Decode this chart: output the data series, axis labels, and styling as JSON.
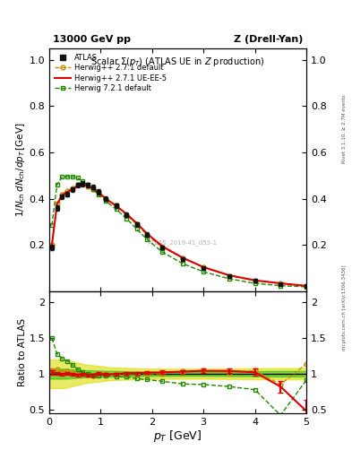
{
  "title_top": "13000 GeV pp",
  "title_right": "Z (Drell-Yan)",
  "plot_title": "Scalar Σ(p_T) (ATLAS UE in Z production)",
  "ylabel_main": "1/N_{ch} dN_{ch}/dp_T [GeV]",
  "ylabel_ratio": "Ratio to ATLAS",
  "xlabel": "p_T [GeV]",
  "side_text_right": "Rivet 3.1.10, ≥ 2.7M events",
  "side_text_left": "mcplots.cern.ch [arXiv:1306.3436]",
  "watermark": "ATLAS_2019-41_d53-1",
  "atlas_x": [
    0.05,
    0.15,
    0.25,
    0.35,
    0.45,
    0.55,
    0.65,
    0.75,
    0.85,
    0.95,
    1.1,
    1.3,
    1.5,
    1.7,
    1.9,
    2.2,
    2.6,
    3.0,
    3.5,
    4.0,
    4.5,
    5.0
  ],
  "atlas_y": [
    0.19,
    0.36,
    0.41,
    0.42,
    0.44,
    0.46,
    0.465,
    0.46,
    0.45,
    0.43,
    0.4,
    0.37,
    0.33,
    0.29,
    0.245,
    0.19,
    0.14,
    0.1,
    0.067,
    0.045,
    0.033,
    0.022
  ],
  "atlas_yerr": [
    0.01,
    0.01,
    0.01,
    0.01,
    0.01,
    0.01,
    0.01,
    0.01,
    0.01,
    0.01,
    0.01,
    0.01,
    0.01,
    0.01,
    0.01,
    0.008,
    0.006,
    0.004,
    0.003,
    0.002,
    0.002,
    0.001
  ],
  "hw271def_x": [
    0.05,
    0.15,
    0.25,
    0.35,
    0.45,
    0.55,
    0.65,
    0.75,
    0.85,
    0.95,
    1.1,
    1.3,
    1.5,
    1.7,
    1.9,
    2.2,
    2.6,
    3.0,
    3.5,
    4.0,
    4.5,
    5.0
  ],
  "hw271def_y": [
    0.2,
    0.38,
    0.42,
    0.435,
    0.445,
    0.46,
    0.465,
    0.455,
    0.44,
    0.43,
    0.4,
    0.37,
    0.33,
    0.29,
    0.245,
    0.19,
    0.145,
    0.105,
    0.068,
    0.047,
    0.036,
    0.025
  ],
  "hw271ue5_x": [
    0.05,
    0.15,
    0.25,
    0.35,
    0.45,
    0.55,
    0.65,
    0.75,
    0.85,
    0.95,
    1.1,
    1.3,
    1.5,
    1.7,
    1.9,
    2.2,
    2.6,
    3.0,
    3.5,
    4.0,
    4.5,
    5.0
  ],
  "hw271ue5_y": [
    0.2,
    0.375,
    0.415,
    0.43,
    0.44,
    0.455,
    0.465,
    0.455,
    0.445,
    0.43,
    0.4,
    0.37,
    0.335,
    0.295,
    0.25,
    0.195,
    0.145,
    0.105,
    0.07,
    0.048,
    0.035,
    0.024
  ],
  "hw271ue5_yerr": [
    0.005,
    0.005,
    0.005,
    0.005,
    0.005,
    0.005,
    0.005,
    0.005,
    0.005,
    0.005,
    0.005,
    0.005,
    0.005,
    0.005,
    0.005,
    0.004,
    0.003,
    0.003,
    0.002,
    0.002,
    0.002,
    0.001
  ],
  "hw721def_x": [
    0.05,
    0.15,
    0.25,
    0.35,
    0.45,
    0.55,
    0.65,
    0.75,
    0.85,
    0.95,
    1.1,
    1.3,
    1.5,
    1.7,
    1.9,
    2.2,
    2.6,
    3.0,
    3.5,
    4.0,
    4.5,
    5.0
  ],
  "hw721def_y": [
    0.285,
    0.46,
    0.495,
    0.495,
    0.495,
    0.49,
    0.475,
    0.46,
    0.44,
    0.42,
    0.39,
    0.355,
    0.315,
    0.27,
    0.225,
    0.17,
    0.12,
    0.085,
    0.055,
    0.035,
    0.025,
    0.02
  ],
  "ratio_hw271def_y": [
    1.05,
    1.06,
    1.025,
    1.035,
    1.01,
    1.0,
    1.0,
    0.99,
    0.978,
    1.0,
    1.0,
    1.0,
    1.0,
    1.0,
    1.0,
    1.0,
    1.036,
    1.05,
    1.015,
    1.044,
    0.85,
    1.136
  ],
  "ratio_hw271ue5_y": [
    1.02,
    1.01,
    0.99,
    1.0,
    0.99,
    0.985,
    0.995,
    0.985,
    0.985,
    1.0,
    0.99,
    0.995,
    1.01,
    1.01,
    1.015,
    1.02,
    1.03,
    1.04,
    1.04,
    1.02,
    0.82,
    0.48
  ],
  "ratio_hw271ue5_yerr": [
    0.03,
    0.02,
    0.02,
    0.02,
    0.02,
    0.02,
    0.02,
    0.02,
    0.02,
    0.02,
    0.02,
    0.02,
    0.02,
    0.02,
    0.02,
    0.025,
    0.025,
    0.03,
    0.03,
    0.05,
    0.08,
    0.15
  ],
  "ratio_hw721def_y": [
    1.5,
    1.28,
    1.21,
    1.18,
    1.125,
    1.065,
    1.02,
    1.0,
    0.978,
    0.977,
    0.975,
    0.959,
    0.955,
    0.931,
    0.918,
    0.895,
    0.857,
    0.85,
    0.821,
    0.778,
    0.42,
    0.91
  ],
  "atlas_band_x": [
    0.0,
    0.3,
    0.7,
    1.2,
    2.0,
    3.0,
    4.5,
    5.5
  ],
  "atlas_band_inner_lo": [
    0.93,
    0.93,
    0.95,
    0.96,
    0.97,
    0.97,
    0.96,
    0.96
  ],
  "atlas_band_inner_hi": [
    1.07,
    1.07,
    1.05,
    1.04,
    1.03,
    1.03,
    1.04,
    1.04
  ],
  "atlas_band_outer_lo": [
    0.8,
    0.8,
    0.87,
    0.91,
    0.93,
    0.93,
    0.92,
    0.92
  ],
  "atlas_band_outer_hi": [
    1.2,
    1.2,
    1.13,
    1.09,
    1.07,
    1.07,
    1.08,
    1.08
  ],
  "atlas_band_inner_color": "#00bb00",
  "atlas_band_inner_alpha": 0.45,
  "atlas_band_outer_color": "#dddd00",
  "atlas_band_outer_alpha": 0.6,
  "atlas_color": "#111111",
  "hw271def_color": "#cc8800",
  "hw271ue5_color": "#dd0000",
  "hw721def_color": "#228800",
  "ylim_main": [
    0.0,
    1.05
  ],
  "yticks_main": [
    0.2,
    0.4,
    0.6,
    0.8,
    1.0
  ],
  "ylim_ratio": [
    0.45,
    2.15
  ],
  "yticks_ratio": [
    0.5,
    1.0,
    1.5,
    2.0
  ],
  "xlim": [
    0.0,
    5.0
  ],
  "xticks": [
    0,
    1,
    2,
    3,
    4,
    5
  ],
  "background_color": "#ffffff"
}
